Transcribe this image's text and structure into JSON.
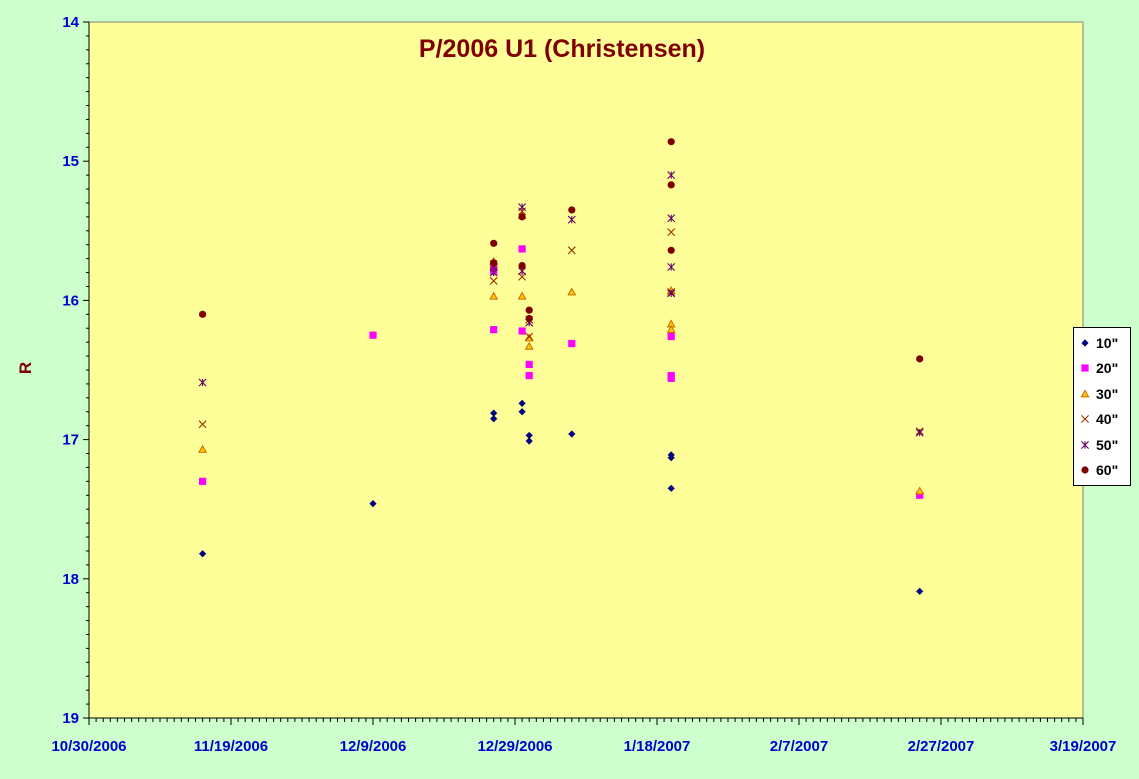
{
  "chart_data": {
    "type": "scatter",
    "title": "P/2006 U1 (Christensen)",
    "ylabel": "R",
    "xlabel": "",
    "ylim": [
      19,
      14
    ],
    "y_inverted": true,
    "y_ticks": [
      "14",
      "15",
      "16",
      "17",
      "18",
      "19"
    ],
    "x_ticks": [
      "10/30/2006",
      "11/19/2006",
      "12/9/2006",
      "12/29/2006",
      "1/18/2007",
      "2/7/2007",
      "2/27/2007",
      "3/19/2007"
    ],
    "xlim": [
      "10/30/2006",
      "3/19/2007"
    ],
    "grid": false,
    "legend_position": "right",
    "series": [
      {
        "name": "10\"",
        "marker": "diamond",
        "color": "#000080",
        "points": [
          {
            "x": "11/15/2006",
            "y": 17.82
          },
          {
            "x": "12/9/2006",
            "y": 17.46
          },
          {
            "x": "12/26/2006",
            "y": 16.81
          },
          {
            "x": "12/26/2006",
            "y": 16.85
          },
          {
            "x": "12/30/2006",
            "y": 16.74
          },
          {
            "x": "12/30/2006",
            "y": 16.8
          },
          {
            "x": "12/31/2006",
            "y": 16.97
          },
          {
            "x": "12/31/2006",
            "y": 17.01
          },
          {
            "x": "1/6/2007",
            "y": 16.96
          },
          {
            "x": "1/20/2007",
            "y": 17.11
          },
          {
            "x": "1/20/2007",
            "y": 17.13
          },
          {
            "x": "1/20/2007",
            "y": 17.35
          },
          {
            "x": "2/24/2007",
            "y": 18.09
          }
        ]
      },
      {
        "name": "20\"",
        "marker": "square",
        "color": "#FF00FF",
        "points": [
          {
            "x": "11/15/2006",
            "y": 17.3
          },
          {
            "x": "12/9/2006",
            "y": 16.25
          },
          {
            "x": "12/26/2006",
            "y": 15.77
          },
          {
            "x": "12/26/2006",
            "y": 15.79
          },
          {
            "x": "12/26/2006",
            "y": 16.21
          },
          {
            "x": "12/30/2006",
            "y": 15.63
          },
          {
            "x": "12/30/2006",
            "y": 16.22
          },
          {
            "x": "12/31/2006",
            "y": 16.46
          },
          {
            "x": "12/31/2006",
            "y": 16.54
          },
          {
            "x": "1/6/2007",
            "y": 16.31
          },
          {
            "x": "1/20/2007",
            "y": 16.26
          },
          {
            "x": "1/20/2007",
            "y": 16.54
          },
          {
            "x": "1/20/2007",
            "y": 16.56
          },
          {
            "x": "2/24/2007",
            "y": 17.4
          }
        ]
      },
      {
        "name": "30\"",
        "marker": "triangle",
        "color": "#FFCC00",
        "stroke": "#CC6600",
        "points": [
          {
            "x": "11/15/2006",
            "y": 17.07
          },
          {
            "x": "12/26/2006",
            "y": 15.72
          },
          {
            "x": "12/26/2006",
            "y": 15.97
          },
          {
            "x": "12/30/2006",
            "y": 15.39
          },
          {
            "x": "12/30/2006",
            "y": 15.97
          },
          {
            "x": "12/31/2006",
            "y": 16.27
          },
          {
            "x": "12/31/2006",
            "y": 16.33
          },
          {
            "x": "1/6/2007",
            "y": 15.94
          },
          {
            "x": "1/20/2007",
            "y": 15.93
          },
          {
            "x": "1/20/2007",
            "y": 16.17
          },
          {
            "x": "1/20/2007",
            "y": 16.21
          },
          {
            "x": "2/24/2007",
            "y": 17.37
          }
        ]
      },
      {
        "name": "40\"",
        "marker": "x",
        "color": "#993300",
        "points": [
          {
            "x": "11/15/2006",
            "y": 16.89
          },
          {
            "x": "12/26/2006",
            "y": 15.74
          },
          {
            "x": "12/26/2006",
            "y": 15.86
          },
          {
            "x": "12/30/2006",
            "y": 15.36
          },
          {
            "x": "12/30/2006",
            "y": 15.83
          },
          {
            "x": "12/31/2006",
            "y": 16.14
          },
          {
            "x": "12/31/2006",
            "y": 16.26
          },
          {
            "x": "1/6/2007",
            "y": 15.64
          },
          {
            "x": "1/20/2007",
            "y": 15.51
          },
          {
            "x": "1/20/2007",
            "y": 15.94
          },
          {
            "x": "2/24/2007",
            "y": 16.94
          }
        ]
      },
      {
        "name": "50\"",
        "marker": "star",
        "color": "#660066",
        "points": [
          {
            "x": "11/15/2006",
            "y": 16.59
          },
          {
            "x": "12/26/2006",
            "y": 15.76
          },
          {
            "x": "12/26/2006",
            "y": 15.8
          },
          {
            "x": "12/30/2006",
            "y": 15.33
          },
          {
            "x": "12/30/2006",
            "y": 15.79
          },
          {
            "x": "12/31/2006",
            "y": 16.16
          },
          {
            "x": "1/6/2007",
            "y": 15.42
          },
          {
            "x": "1/20/2007",
            "y": 15.1
          },
          {
            "x": "1/20/2007",
            "y": 15.41
          },
          {
            "x": "1/20/2007",
            "y": 15.76
          },
          {
            "x": "1/20/2007",
            "y": 15.95
          },
          {
            "x": "2/24/2007",
            "y": 16.95
          }
        ]
      },
      {
        "name": "60\"",
        "marker": "circle",
        "color": "#800000",
        "points": [
          {
            "x": "11/15/2006",
            "y": 16.1
          },
          {
            "x": "12/26/2006",
            "y": 15.59
          },
          {
            "x": "12/26/2006",
            "y": 15.73
          },
          {
            "x": "12/30/2006",
            "y": 15.4
          },
          {
            "x": "12/30/2006",
            "y": 15.75
          },
          {
            "x": "12/31/2006",
            "y": 16.07
          },
          {
            "x": "12/31/2006",
            "y": 16.13
          },
          {
            "x": "1/6/2007",
            "y": 15.35
          },
          {
            "x": "1/20/2007",
            "y": 14.86
          },
          {
            "x": "1/20/2007",
            "y": 15.17
          },
          {
            "x": "1/20/2007",
            "y": 15.64
          },
          {
            "x": "2/24/2007",
            "y": 16.42
          }
        ]
      }
    ]
  }
}
